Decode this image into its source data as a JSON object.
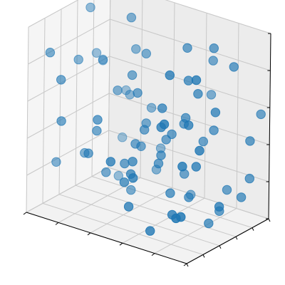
{
  "chart_data": {
    "type": "scatter",
    "projection": "3d",
    "title": "",
    "xlabel": "",
    "ylabel": "",
    "zlabel": "",
    "grid": true,
    "legend": "none",
    "tick_labels_visible": false,
    "xlim": [
      0,
      1
    ],
    "ylim": [
      0,
      1
    ],
    "zlim": [
      0,
      1
    ],
    "marker_color": "#1f77b4",
    "x": [
      0.62,
      0.13,
      0.33,
      0.37,
      0.9,
      0.73,
      0.58,
      0.69,
      0.44,
      0.81,
      0.44,
      0.74,
      0.06,
      0.79,
      0.27,
      0.53,
      0.03,
      0.73,
      0.6,
      0.09,
      0.75,
      0.05,
      0.81,
      0.68,
      0.92,
      0.26,
      0.35,
      0.91,
      0.44,
      0.21,
      0.84,
      0.02,
      0.03,
      0.48,
      0.12,
      0.56,
      0.79,
      0.29,
      0.39,
      0.99,
      0.91,
      0.65,
      0.65,
      0.95,
      0.42,
      0.97,
      0.96,
      0.31,
      0.66,
      0.14,
      0.66,
      0.36,
      0.88,
      0.87,
      0.94,
      0.82,
      0.29,
      0.67,
      0.44,
      0.73,
      0.05,
      0.57,
      0.77,
      0.98,
      0.79,
      0.37,
      0.85,
      0.51,
      0.52,
      0.7,
      0.03,
      0.25,
      0.11,
      0.39,
      0.5,
      0.61,
      0.91,
      0.61,
      0.87,
      0.11
    ],
    "y": [
      0.55,
      0.16,
      0.21,
      0.55,
      0.53,
      0.72,
      0.47,
      0.58,
      0.48,
      0.69,
      0.59,
      0.06,
      0.5,
      0.72,
      0.22,
      0.25,
      0.21,
      0.55,
      0.07,
      0.99,
      0.49,
      0.82,
      0.08,
      0.42,
      0.08,
      0.34,
      0.83,
      0.27,
      0.53,
      0.84,
      0.8,
      0.32,
      0.86,
      0.49,
      0.47,
      0.91,
      0.53,
      0.75,
      0.82,
      0.78,
      0.73,
      0.97,
      0.65,
      0.76,
      0.37,
      0.45,
      0.97,
      0.65,
      0.62,
      0.85,
      0.35,
      0.93,
      0.17,
      0.65,
      0.26,
      0.36,
      0.4,
      0.63,
      0.46,
      0.83,
      0.66,
      0.58,
      0.22,
      0.8,
      0.23,
      0.55,
      0.56,
      0.02,
      0.25,
      0.26,
      0.78,
      0.61,
      0.99,
      0.68,
      0.21,
      0.1,
      0.04,
      0.44,
      0.36,
      0.19
    ],
    "z": [
      0.46,
      0.49,
      0.54,
      0.09,
      0.66,
      0.41,
      0.31,
      0.56,
      0.65,
      0.5,
      0.46,
      0.09,
      0.72,
      0.93,
      0.34,
      0.36,
      0.82,
      0.15,
      0.18,
      0.19,
      0.8,
      0.64,
      0.68,
      0.19,
      0.21,
      0.43,
      0.46,
      0.9,
      0.35,
      0.49,
      0.16,
      0.2,
      0.62,
      0.46,
      0.24,
      0.03,
      0.73,
      0.78,
      0.14,
      0.47,
      0.86,
      0.58,
      0.23,
      0.16,
      0.29,
      0.19,
      0.56,
      0.98,
      0.51,
      0.03,
      0.66,
      0.22,
      0.45,
      0.09,
      0.53,
      0.61,
      0.2,
      0.92,
      0.38,
      0.82,
      0.96,
      0.41,
      0.9,
      0.26,
      0.15,
      0.71,
      0.04,
      0.41,
      0.29,
      0.59,
      0.68,
      0.58,
      0.45,
      0.8,
      0.25,
      0.33,
      0.21,
      0.37,
      0.4,
      0.7
    ]
  }
}
